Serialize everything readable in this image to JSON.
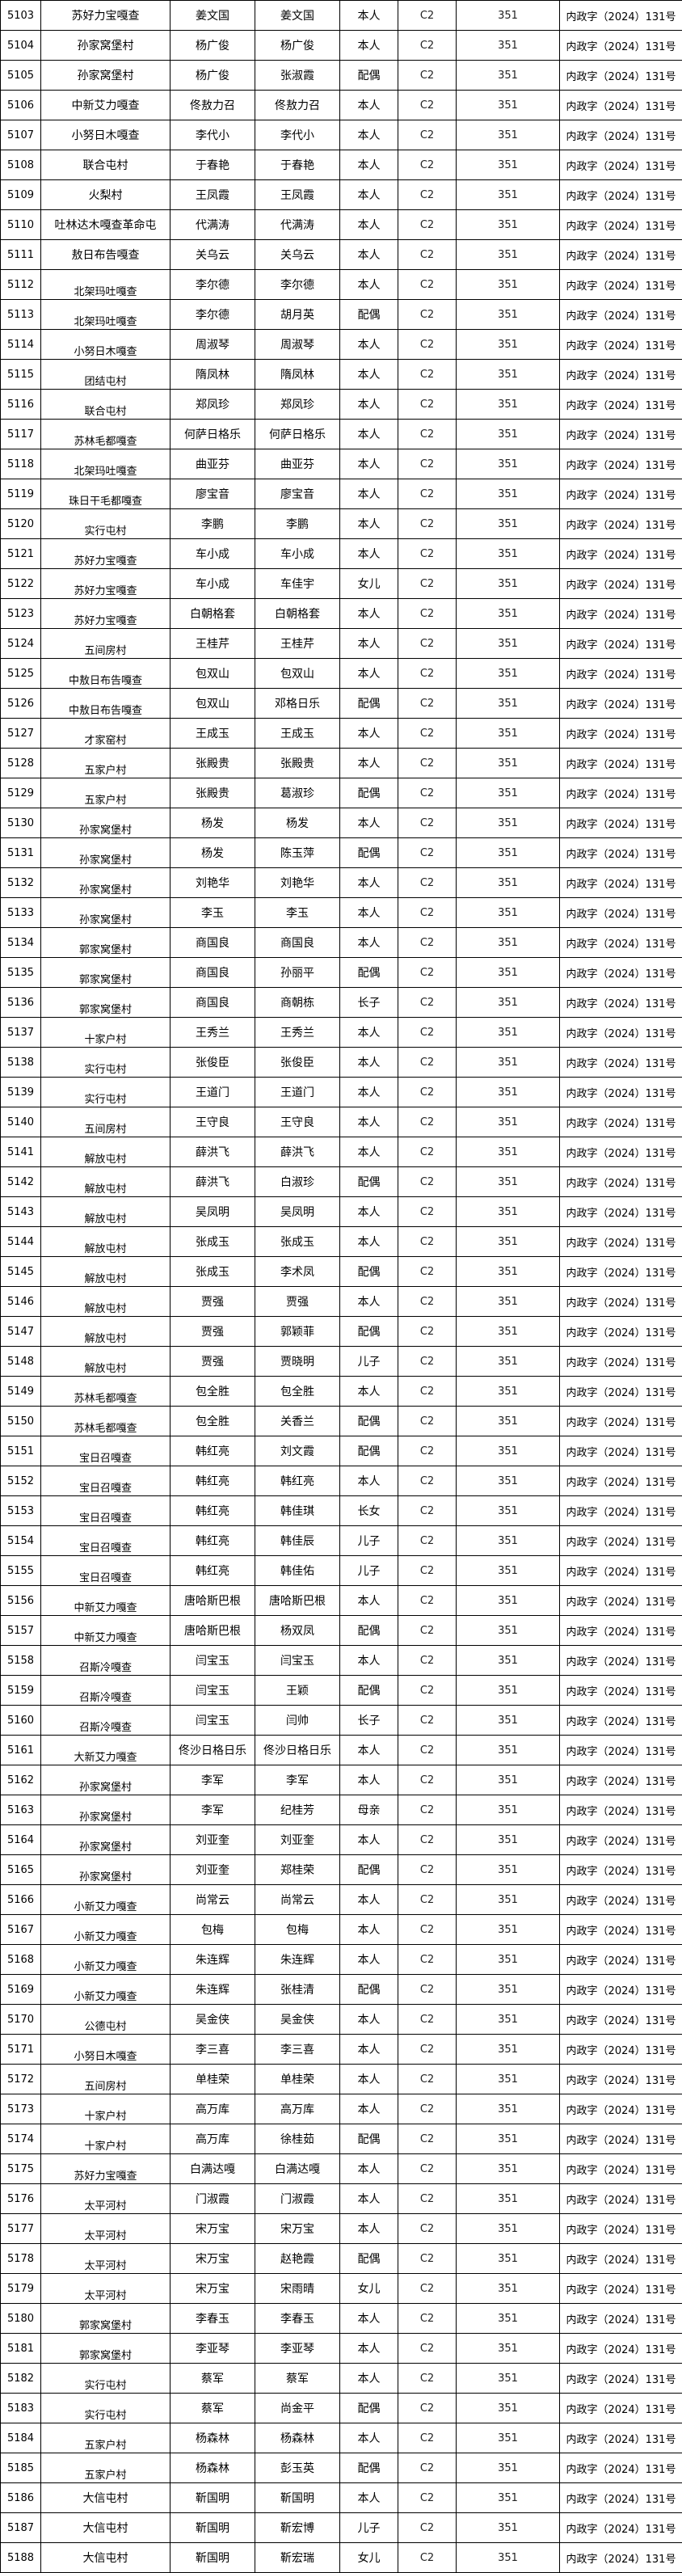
{
  "table": {
    "license_class": "C2",
    "amount": "351",
    "document_ref": "内政字（2024）131号",
    "rows": [
      [
        "5103",
        "苏好力宝嘎查",
        "姜文国",
        "姜文国",
        "本人"
      ],
      [
        "5104",
        "孙家窝堡村",
        "杨广俊",
        "杨广俊",
        "本人"
      ],
      [
        "5105",
        "孙家窝堡村",
        "杨广俊",
        "张淑霞",
        "配偶"
      ],
      [
        "5106",
        "中新艾力嘎查",
        "佟敖力召",
        "佟敖力召",
        "本人"
      ],
      [
        "5107",
        "小努日木嘎查",
        "李代小",
        "李代小",
        "本人"
      ],
      [
        "5108",
        "联合屯村",
        "于春艳",
        "于春艳",
        "本人"
      ],
      [
        "5109",
        "火梨村",
        "王凤霞",
        "王凤霞",
        "本人"
      ],
      [
        "5110",
        "吐林达木嘎查革命屯",
        "代满涛",
        "代满涛",
        "本人"
      ],
      [
        "5111",
        "敖日布告嘎查",
        "关乌云",
        "关乌云",
        "本人"
      ],
      [
        "5112",
        "北架玛吐嘎查",
        "李尔德",
        "李尔德",
        "本人"
      ],
      [
        "5113",
        "北架玛吐嘎查",
        "李尔德",
        "胡月英",
        "配偶"
      ],
      [
        "5114",
        "小努日木嘎查",
        "周淑琴",
        "周淑琴",
        "本人"
      ],
      [
        "5115",
        "团结屯村",
        "隋凤林",
        "隋凤林",
        "本人"
      ],
      [
        "5116",
        "联合屯村",
        "郑凤珍",
        "郑凤珍",
        "本人"
      ],
      [
        "5117",
        "苏林毛都嘎查",
        "何萨日格乐",
        "何萨日格乐",
        "本人"
      ],
      [
        "5118",
        "北架玛吐嘎查",
        "曲亚芬",
        "曲亚芬",
        "本人"
      ],
      [
        "5119",
        "珠日干毛都嘎查",
        "廖宝音",
        "廖宝音",
        "本人"
      ],
      [
        "5120",
        "实行屯村",
        "李鹏",
        "李鹏",
        "本人"
      ],
      [
        "5121",
        "苏好力宝嘎查",
        "车小成",
        "车小成",
        "本人"
      ],
      [
        "5122",
        "苏好力宝嘎查",
        "车小成",
        "车佳宇",
        "女儿"
      ],
      [
        "5123",
        "苏好力宝嘎查",
        "白朝格套",
        "白朝格套",
        "本人"
      ],
      [
        "5124",
        "五间房村",
        "王桂芹",
        "王桂芹",
        "本人"
      ],
      [
        "5125",
        "中敖日布告嘎查",
        "包双山",
        "包双山",
        "本人"
      ],
      [
        "5126",
        "中敖日布告嘎查",
        "包双山",
        "邓格日乐",
        "配偶"
      ],
      [
        "5127",
        "才家窑村",
        "王成玉",
        "王成玉",
        "本人"
      ],
      [
        "5128",
        "五家户村",
        "张殿贵",
        "张殿贵",
        "本人"
      ],
      [
        "5129",
        "五家户村",
        "张殿贵",
        "葛淑珍",
        "配偶"
      ],
      [
        "5130",
        "孙家窝堡村",
        "杨发",
        "杨发",
        "本人"
      ],
      [
        "5131",
        "孙家窝堡村",
        "杨发",
        "陈玉萍",
        "配偶"
      ],
      [
        "5132",
        "孙家窝堡村",
        "刘艳华",
        "刘艳华",
        "本人"
      ],
      [
        "5133",
        "孙家窝堡村",
        "李玉",
        "李玉",
        "本人"
      ],
      [
        "5134",
        "郭家窝堡村",
        "商国良",
        "商国良",
        "本人"
      ],
      [
        "5135",
        "郭家窝堡村",
        "商国良",
        "孙丽平",
        "配偶"
      ],
      [
        "5136",
        "郭家窝堡村",
        "商国良",
        "商朝栋",
        "长子"
      ],
      [
        "5137",
        "十家户村",
        "王秀兰",
        "王秀兰",
        "本人"
      ],
      [
        "5138",
        "实行屯村",
        "张俊臣",
        "张俊臣",
        "本人"
      ],
      [
        "5139",
        "实行屯村",
        "王道门",
        "王道门",
        "本人"
      ],
      [
        "5140",
        "五间房村",
        "王守良",
        "王守良",
        "本人"
      ],
      [
        "5141",
        "解放屯村",
        "薛洪飞",
        "薛洪飞",
        "本人"
      ],
      [
        "5142",
        "解放屯村",
        "薛洪飞",
        "白淑珍",
        "配偶"
      ],
      [
        "5143",
        "解放屯村",
        "吴凤明",
        "吴凤明",
        "本人"
      ],
      [
        "5144",
        "解放屯村",
        "张成玉",
        "张成玉",
        "本人"
      ],
      [
        "5145",
        "解放屯村",
        "张成玉",
        "李术凤",
        "配偶"
      ],
      [
        "5146",
        "解放屯村",
        "贾强",
        "贾强",
        "本人"
      ],
      [
        "5147",
        "解放屯村",
        "贾强",
        "郭颖菲",
        "配偶"
      ],
      [
        "5148",
        "解放屯村",
        "贾强",
        "贾晓明",
        "儿子"
      ],
      [
        "5149",
        "苏林毛都嘎查",
        "包全胜",
        "包全胜",
        "本人"
      ],
      [
        "5150",
        "苏林毛都嘎查",
        "包全胜",
        "关香兰",
        "配偶"
      ],
      [
        "5151",
        "宝日召嘎查",
        "韩红亮",
        "刘文霞",
        "配偶"
      ],
      [
        "5152",
        "宝日召嘎查",
        "韩红亮",
        "韩红亮",
        "本人"
      ],
      [
        "5153",
        "宝日召嘎查",
        "韩红亮",
        "韩佳琪",
        "长女"
      ],
      [
        "5154",
        "宝日召嘎查",
        "韩红亮",
        "韩佳辰",
        "儿子"
      ],
      [
        "5155",
        "宝日召嘎查",
        "韩红亮",
        "韩佳佑",
        "儿子"
      ],
      [
        "5156",
        "中新艾力嘎查",
        "唐哈斯巴根",
        "唐哈斯巴根",
        "本人"
      ],
      [
        "5157",
        "中新艾力嘎查",
        "唐哈斯巴根",
        "杨双凤",
        "配偶"
      ],
      [
        "5158",
        "召斯冷嘎查",
        "闫宝玉",
        "闫宝玉",
        "本人"
      ],
      [
        "5159",
        "召斯冷嘎查",
        "闫宝玉",
        "王颖",
        "配偶"
      ],
      [
        "5160",
        "召斯冷嘎查",
        "闫宝玉",
        "闫帅",
        "长子"
      ],
      [
        "5161",
        "大新艾力嘎查",
        "佟沙日格日乐",
        "佟沙日格日乐",
        "本人"
      ],
      [
        "5162",
        "孙家窝堡村",
        "李军",
        "李军",
        "本人"
      ],
      [
        "5163",
        "孙家窝堡村",
        "李军",
        "纪桂芳",
        "母亲"
      ],
      [
        "5164",
        "孙家窝堡村",
        "刘亚奎",
        "刘亚奎",
        "本人"
      ],
      [
        "5165",
        "孙家窝堡村",
        "刘亚奎",
        "郑桂荣",
        "配偶"
      ],
      [
        "5166",
        "小新艾力嘎查",
        "尚常云",
        "尚常云",
        "本人"
      ],
      [
        "5167",
        "小新艾力嘎查",
        "包梅",
        "包梅",
        "本人"
      ],
      [
        "5168",
        "小新艾力嘎查",
        "朱连辉",
        "朱连辉",
        "本人"
      ],
      [
        "5169",
        "小新艾力嘎查",
        "朱连辉",
        "张桂清",
        "配偶"
      ],
      [
        "5170",
        "公德屯村",
        "吴金侠",
        "吴金侠",
        "本人"
      ],
      [
        "5171",
        "小努日木嘎查",
        "李三喜",
        "李三喜",
        "本人"
      ],
      [
        "5172",
        "五间房村",
        "单桂荣",
        "单桂荣",
        "本人"
      ],
      [
        "5173",
        "十家户村",
        "高万库",
        "高万库",
        "本人"
      ],
      [
        "5174",
        "十家户村",
        "高万库",
        "徐桂茹",
        "配偶"
      ],
      [
        "5175",
        "苏好力宝嘎查",
        "白满达嘎",
        "白满达嘎",
        "本人"
      ],
      [
        "5176",
        "太平河村",
        "门淑霞",
        "门淑霞",
        "本人"
      ],
      [
        "5177",
        "太平河村",
        "宋万宝",
        "宋万宝",
        "本人"
      ],
      [
        "5178",
        "太平河村",
        "宋万宝",
        "赵艳霞",
        "配偶"
      ],
      [
        "5179",
        "太平河村",
        "宋万宝",
        "宋雨晴",
        "女儿"
      ],
      [
        "5180",
        "郭家窝堡村",
        "李春玉",
        "李春玉",
        "本人"
      ],
      [
        "5181",
        "郭家窝堡村",
        "李亚琴",
        "李亚琴",
        "本人"
      ],
      [
        "5182",
        "实行屯村",
        "蔡军",
        "蔡军",
        "本人"
      ],
      [
        "5183",
        "实行屯村",
        "蔡军",
        "尚金平",
        "配偶"
      ],
      [
        "5184",
        "五家户村",
        "杨森林",
        "杨森林",
        "本人"
      ],
      [
        "5185",
        "五家户村",
        "杨森林",
        "彭玉英",
        "配偶"
      ],
      [
        "5186",
        "大信屯村",
        "靳国明",
        "靳国明",
        "本人"
      ],
      [
        "5187",
        "大信屯村",
        "靳国明",
        "靳宏博",
        "儿子"
      ],
      [
        "5188",
        "大信屯村",
        "靳国明",
        "靳宏瑞",
        "女儿"
      ]
    ]
  }
}
